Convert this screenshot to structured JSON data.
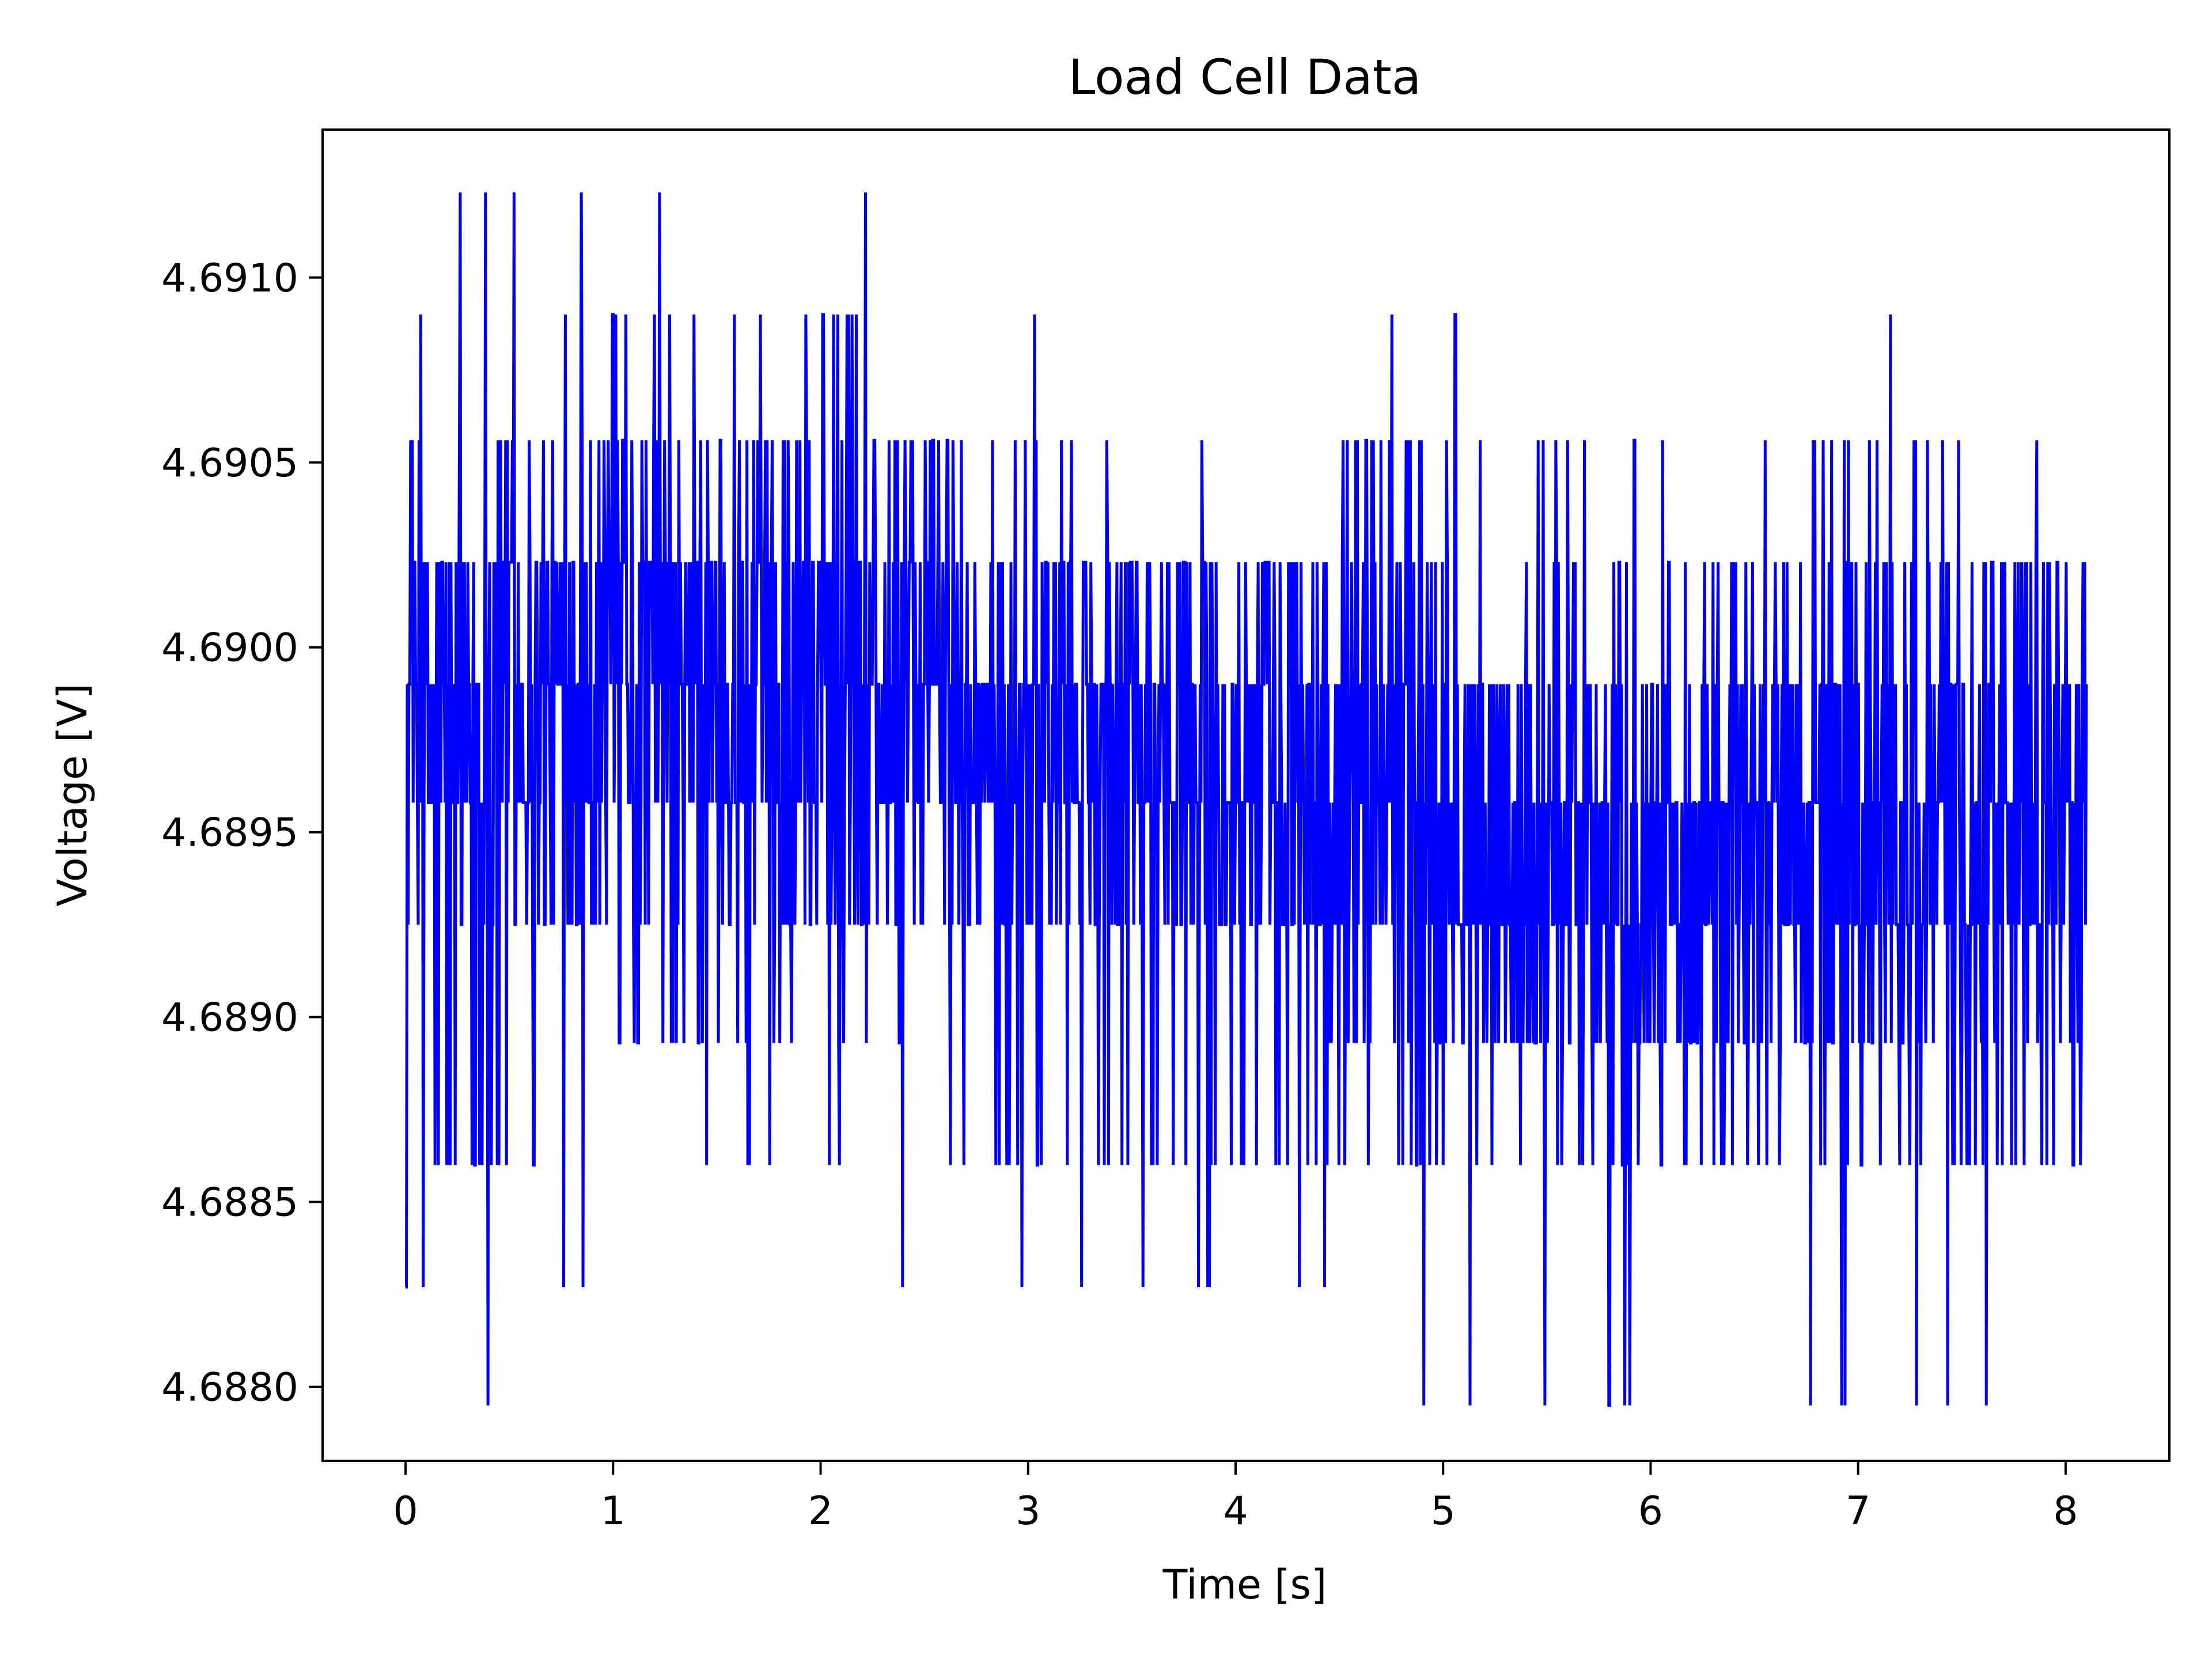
{
  "chart_data": {
    "type": "line",
    "title": "Load Cell Data",
    "xlabel": "Time [s]",
    "ylabel": "Voltage [V]",
    "xlim": [
      -0.4,
      8.5
    ],
    "ylim": [
      4.6878,
      4.6914
    ],
    "x_ticks": [
      0,
      1,
      2,
      3,
      4,
      5,
      6,
      7,
      8
    ],
    "x_tick_labels": [
      "0",
      "1",
      "2",
      "3",
      "4",
      "5",
      "6",
      "7",
      "8"
    ],
    "y_ticks": [
      4.688,
      4.6885,
      4.689,
      4.6895,
      4.69,
      4.6905,
      4.691
    ],
    "y_tick_labels": [
      "4.6880",
      "4.6885",
      "4.6890",
      "4.6895",
      "4.6900",
      "4.6905",
      "4.6910"
    ],
    "grid": false,
    "series": [
      {
        "color": "#0000ff",
        "x_range": [
          0,
          8.1
        ],
        "sample_count": 2000,
        "quantization_levels": [
          4.68795,
          4.68827,
          4.6886,
          4.68893,
          4.68925,
          4.68958,
          4.6899,
          4.69023,
          4.69056,
          4.6909,
          4.69123
        ],
        "envelope": {
          "t": [
            0,
            0.5,
            1.0,
            1.5,
            2.0,
            2.5,
            3.0,
            3.5,
            4.0,
            4.5,
            5.0,
            5.5,
            6.0,
            6.5,
            7.0,
            7.5,
            8.1
          ],
          "core_min": [
            4.68925,
            4.68925,
            4.68925,
            4.68925,
            4.68925,
            4.68925,
            4.68925,
            4.68925,
            4.68925,
            4.68893,
            4.68893,
            4.68893,
            4.68893,
            4.68893,
            4.68893,
            4.68893,
            4.68893
          ],
          "core_max": [
            4.69023,
            4.69056,
            4.69056,
            4.69056,
            4.69056,
            4.69023,
            4.69023,
            4.69023,
            4.69023,
            4.69023,
            4.69023,
            4.6899,
            4.6899,
            4.6899,
            4.69023,
            4.69023,
            4.69023
          ],
          "spike_max": [
            4.6909,
            4.69123,
            4.69123,
            4.69123,
            4.69123,
            4.6909,
            4.6909,
            4.69056,
            4.69056,
            4.69056,
            4.6909,
            4.69056,
            4.69056,
            4.69056,
            4.6909,
            4.69056,
            4.69056
          ],
          "spike_min": [
            4.68827,
            4.68795,
            4.6886,
            4.6886,
            4.6886,
            4.68827,
            4.68827,
            4.68827,
            4.68827,
            4.68827,
            4.68795,
            4.68795,
            4.68795,
            4.68795,
            4.68795,
            4.68795,
            4.68827
          ]
        }
      }
    ]
  }
}
